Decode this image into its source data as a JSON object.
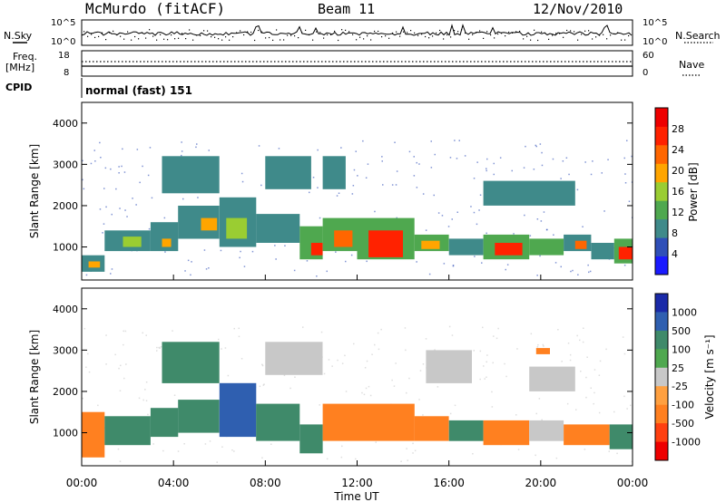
{
  "header": {
    "station": "McMurdo (fitACF)",
    "beam": "Beam 11",
    "date": "12/Nov/2010"
  },
  "top_panels": {
    "nsky_label": "N.Sky",
    "nsky_ticks": [
      "10^5",
      "10^0"
    ],
    "nsearch_label": "N.Search",
    "nsearch_ticks": [
      "10^5",
      "10^0"
    ],
    "freq_label": "Freq.",
    "freq_unit": "[MHz]",
    "freq_ticks": [
      "18",
      "8"
    ],
    "nave_label": "Nave",
    "nave_ticks": [
      "60",
      "0"
    ],
    "cpid_label": "CPID",
    "cpid_value": "normal (fast) 151"
  },
  "colors": {
    "power_scale": [
      "#1a1aff",
      "#2f4fb8",
      "#3f8a8a",
      "#4fa84f",
      "#9acd32",
      "#ffa500",
      "#ff6600",
      "#ff2200",
      "#ee0000"
    ],
    "velocity_scale": [
      "#1a2aa8",
      "#2f5fb0",
      "#3f8a6a",
      "#4fa84f",
      "#c8c8c8",
      "#ffa040",
      "#ff8020",
      "#ff4010",
      "#ee0000"
    ]
  },
  "chart_data": [
    {
      "type": "heatmap",
      "panel": "power",
      "ylabel": "Slant Range [km]",
      "yticks": [
        "4000",
        "3000",
        "2000",
        "1000"
      ],
      "ylim": [
        200,
        4500
      ],
      "colorbar_label": "Power [dB]",
      "colorbar_ticks": [
        "28",
        "24",
        "20",
        "16",
        "12",
        "8",
        "4"
      ],
      "clim": [
        0,
        32
      ],
      "x_start_hour": 0,
      "x_end_hour": 24,
      "cells": [
        {
          "h0": 0.0,
          "h1": 1.0,
          "r0": 400,
          "r1": 800,
          "v": 8
        },
        {
          "h0": 0.3,
          "h1": 0.8,
          "r0": 500,
          "r1": 650,
          "v": 18
        },
        {
          "h0": 1.0,
          "h1": 3.0,
          "r0": 900,
          "r1": 1400,
          "v": 10
        },
        {
          "h0": 1.8,
          "h1": 2.6,
          "r0": 1000,
          "r1": 1250,
          "v": 16
        },
        {
          "h0": 3.0,
          "h1": 4.2,
          "r0": 900,
          "r1": 1600,
          "v": 10
        },
        {
          "h0": 3.5,
          "h1": 3.9,
          "r0": 1000,
          "r1": 1200,
          "v": 18
        },
        {
          "h0": 4.2,
          "h1": 6.0,
          "r0": 1200,
          "r1": 2000,
          "v": 8
        },
        {
          "h0": 5.2,
          "h1": 5.9,
          "r0": 1400,
          "r1": 1700,
          "v": 20
        },
        {
          "h0": 6.0,
          "h1": 7.6,
          "r0": 1000,
          "r1": 2200,
          "v": 9
        },
        {
          "h0": 6.3,
          "h1": 7.2,
          "r0": 1200,
          "r1": 1700,
          "v": 16
        },
        {
          "h0": 7.6,
          "h1": 9.5,
          "r0": 1100,
          "r1": 1800,
          "v": 8
        },
        {
          "h0": 9.5,
          "h1": 10.5,
          "r0": 700,
          "r1": 1500,
          "v": 14
        },
        {
          "h0": 10.0,
          "h1": 10.5,
          "r0": 800,
          "r1": 1100,
          "v": 26
        },
        {
          "h0": 10.5,
          "h1": 12.0,
          "r0": 900,
          "r1": 1700,
          "v": 12
        },
        {
          "h0": 11.0,
          "h1": 11.8,
          "r0": 1000,
          "r1": 1400,
          "v": 22
        },
        {
          "h0": 12.0,
          "h1": 14.5,
          "r0": 700,
          "r1": 1700,
          "v": 14
        },
        {
          "h0": 12.5,
          "h1": 14.0,
          "r0": 750,
          "r1": 1400,
          "v": 28
        },
        {
          "h0": 14.5,
          "h1": 16.0,
          "r0": 900,
          "r1": 1300,
          "v": 12
        },
        {
          "h0": 14.8,
          "h1": 15.6,
          "r0": 950,
          "r1": 1150,
          "v": 20
        },
        {
          "h0": 16.0,
          "h1": 17.5,
          "r0": 800,
          "r1": 1200,
          "v": 10
        },
        {
          "h0": 17.5,
          "h1": 19.5,
          "r0": 700,
          "r1": 1300,
          "v": 14
        },
        {
          "h0": 18.0,
          "h1": 19.2,
          "r0": 800,
          "r1": 1100,
          "v": 26
        },
        {
          "h0": 19.5,
          "h1": 21.0,
          "r0": 800,
          "r1": 1200,
          "v": 12
        },
        {
          "h0": 21.0,
          "h1": 22.2,
          "r0": 900,
          "r1": 1300,
          "v": 10
        },
        {
          "h0": 21.5,
          "h1": 22.0,
          "r0": 950,
          "r1": 1150,
          "v": 22
        },
        {
          "h0": 22.2,
          "h1": 23.2,
          "r0": 700,
          "r1": 1100,
          "v": 8
        },
        {
          "h0": 23.2,
          "h1": 24.0,
          "r0": 600,
          "r1": 1200,
          "v": 14
        },
        {
          "h0": 23.4,
          "h1": 24.0,
          "r0": 700,
          "r1": 1000,
          "v": 28
        },
        {
          "h0": 3.5,
          "h1": 6.0,
          "r0": 2300,
          "r1": 3200,
          "v": 8
        },
        {
          "h0": 8.0,
          "h1": 10.0,
          "r0": 2400,
          "r1": 3200,
          "v": 8
        },
        {
          "h0": 10.5,
          "h1": 11.5,
          "r0": 2400,
          "r1": 3200,
          "v": 10
        },
        {
          "h0": 17.5,
          "h1": 21.5,
          "r0": 2000,
          "r1": 2600,
          "v": 8
        }
      ]
    },
    {
      "type": "heatmap",
      "panel": "velocity",
      "ylabel": "Slant Range [km]",
      "yticks": [
        "4000",
        "3000",
        "2000",
        "1000"
      ],
      "ylim": [
        200,
        4500
      ],
      "xlabel": "Time UT",
      "xticks": [
        "00:00",
        "04:00",
        "08:00",
        "12:00",
        "16:00",
        "20:00",
        "00:00"
      ],
      "colorbar_label": "Velocity [m s⁻¹]",
      "colorbar_ticks": [
        "1000",
        "500",
        "100",
        "25",
        "-25",
        "-100",
        "-500",
        "-1000"
      ],
      "x_start_hour": 0,
      "x_end_hour": 24,
      "cells": [
        {
          "h0": 0.0,
          "h1": 1.0,
          "r0": 400,
          "r1": 1500,
          "v": -300
        },
        {
          "h0": 1.0,
          "h1": 3.0,
          "r0": 700,
          "r1": 1400,
          "v": 120
        },
        {
          "h0": 3.0,
          "h1": 4.2,
          "r0": 900,
          "r1": 1600,
          "v": 150
        },
        {
          "h0": 4.2,
          "h1": 6.0,
          "r0": 1000,
          "r1": 1800,
          "v": 130
        },
        {
          "h0": 6.0,
          "h1": 7.6,
          "r0": 900,
          "r1": 2200,
          "v": 900
        },
        {
          "h0": 7.6,
          "h1": 9.5,
          "r0": 800,
          "r1": 1700,
          "v": 140
        },
        {
          "h0": 9.5,
          "h1": 10.5,
          "r0": 500,
          "r1": 1200,
          "v": 150
        },
        {
          "h0": 10.5,
          "h1": 14.5,
          "r0": 800,
          "r1": 1700,
          "v": -250
        },
        {
          "h0": 14.5,
          "h1": 16.0,
          "r0": 800,
          "r1": 1400,
          "v": -250
        },
        {
          "h0": 16.0,
          "h1": 17.5,
          "r0": 800,
          "r1": 1300,
          "v": 120
        },
        {
          "h0": 17.5,
          "h1": 19.5,
          "r0": 700,
          "r1": 1300,
          "v": -250
        },
        {
          "h0": 19.5,
          "h1": 21.0,
          "r0": 800,
          "r1": 1300,
          "v": 0
        },
        {
          "h0": 21.0,
          "h1": 23.0,
          "r0": 700,
          "r1": 1200,
          "v": -250
        },
        {
          "h0": 23.0,
          "h1": 24.0,
          "r0": 600,
          "r1": 1200,
          "v": 200
        },
        {
          "h0": 3.5,
          "h1": 6.0,
          "r0": 2200,
          "r1": 3200,
          "v": 120
        },
        {
          "h0": 8.0,
          "h1": 10.5,
          "r0": 2400,
          "r1": 3200,
          "v": 0
        },
        {
          "h0": 15.0,
          "h1": 17.0,
          "r0": 2200,
          "r1": 3000,
          "v": 0
        },
        {
          "h0": 19.5,
          "h1": 21.5,
          "r0": 2000,
          "r1": 2600,
          "v": 0
        },
        {
          "h0": 19.8,
          "h1": 20.4,
          "r0": 2900,
          "r1": 3050,
          "v": -250
        }
      ]
    }
  ]
}
